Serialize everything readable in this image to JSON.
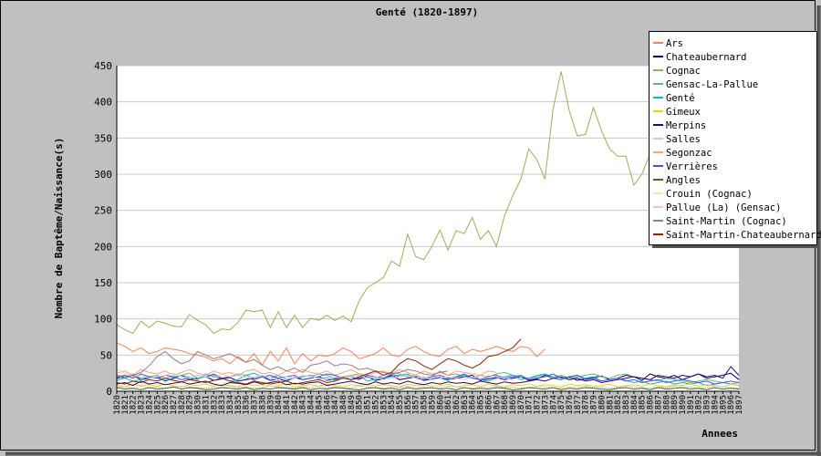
{
  "chart_data": {
    "type": "line",
    "title": "Genté (1820-1897)",
    "xlabel": "Annees",
    "ylabel": "Nombre de Baptême/Naissance(s)",
    "ylim": [
      0,
      450
    ],
    "yticks": [
      0,
      50,
      100,
      150,
      200,
      250,
      300,
      350,
      400,
      450
    ],
    "x_start": 1820,
    "x_end": 1897,
    "grid": true,
    "legend_position": "top-right",
    "series": [
      {
        "name": "Ars",
        "color": "#ff7f50",
        "values": [
          67,
          62,
          55,
          60,
          52,
          55,
          60,
          58,
          56,
          52,
          50,
          47,
          42,
          45,
          38,
          48,
          40,
          52,
          36,
          55,
          42,
          60,
          38,
          52,
          42,
          50,
          48,
          52,
          60,
          55,
          45,
          48,
          52,
          60,
          50,
          48,
          58,
          62,
          55,
          50,
          48,
          58,
          62,
          52,
          58,
          55,
          58,
          62,
          58,
          55,
          62,
          60,
          48,
          58,
          null,
          null,
          null,
          null,
          null,
          null,
          null,
          null,
          null,
          null,
          null,
          null,
          null,
          null,
          null,
          null,
          null,
          null,
          null,
          null,
          null,
          null,
          null,
          null
        ]
      },
      {
        "name": "Chateaubernard",
        "color": "#000080",
        "values": [
          18,
          20,
          22,
          16,
          18,
          20,
          14,
          18,
          22,
          16,
          18,
          20,
          15,
          17,
          19,
          14,
          16,
          18,
          20,
          15,
          17,
          14,
          19,
          16,
          18,
          20,
          15,
          17,
          19,
          16,
          18,
          20,
          15,
          17,
          22,
          16,
          18,
          20,
          15,
          17,
          19,
          16,
          18,
          20,
          22,
          15,
          17,
          19,
          16,
          18,
          20,
          15,
          17,
          22,
          18,
          16,
          20,
          15,
          17,
          19,
          21,
          16,
          18,
          22,
          20,
          15,
          24,
          20,
          18,
          22,
          16,
          20,
          24,
          18,
          20,
          22,
          25,
          16
        ]
      },
      {
        "name": "Cognac",
        "color": "#a8a852",
        "values": [
          92,
          85,
          80,
          97,
          88,
          97,
          94,
          90,
          89,
          106,
          98,
          92,
          80,
          86,
          85,
          95,
          112,
          110,
          112,
          88,
          110,
          88,
          105,
          88,
          101,
          98,
          105,
          98,
          104,
          96,
          125,
          143,
          150,
          157,
          180,
          173,
          217,
          186,
          182,
          200,
          223,
          195,
          222,
          218,
          240,
          210,
          222,
          200,
          243,
          270,
          293,
          335,
          320,
          293,
          390,
          442,
          388,
          353,
          355,
          392,
          360,
          335,
          325,
          325,
          285,
          300,
          328,
          333,
          328,
          322,
          null,
          null,
          null,
          null,
          null,
          null,
          null,
          null
        ]
      },
      {
        "name": "Gensac-La-Pallue",
        "color": "#66bb66",
        "values": [
          22,
          20,
          24,
          18,
          20,
          22,
          18,
          20,
          22,
          25,
          18,
          20,
          22,
          18,
          20,
          24,
          22,
          18,
          20,
          22,
          16,
          20,
          18,
          22,
          20,
          24,
          22,
          18,
          20,
          22,
          24,
          20,
          18,
          22,
          26,
          24,
          20,
          22,
          18,
          20,
          28,
          22,
          24,
          20,
          18,
          22,
          20,
          24,
          26,
          22,
          20,
          18,
          22,
          24,
          20,
          22,
          18,
          20,
          22,
          24,
          20,
          18,
          22,
          24,
          20,
          18,
          16,
          14,
          18,
          16,
          14,
          12,
          14,
          16,
          14,
          12,
          10,
          12
        ]
      },
      {
        "name": "Genté",
        "color": "#00bcd4",
        "values": [
          15,
          18,
          14,
          16,
          20,
          18,
          15,
          17,
          22,
          19,
          16,
          24,
          20,
          18,
          14,
          16,
          22,
          25,
          20,
          18,
          22,
          16,
          18,
          20,
          22,
          17,
          19,
          15,
          18,
          20,
          22,
          14,
          16,
          18,
          20,
          22,
          24,
          18,
          20,
          16,
          18,
          15,
          20,
          22,
          18,
          16,
          14,
          18,
          20,
          22,
          16,
          18,
          20,
          24,
          18,
          16,
          20,
          22,
          18,
          20,
          14,
          16,
          18,
          15,
          12,
          14,
          10,
          12,
          14,
          10,
          12,
          10,
          12,
          8,
          10,
          12,
          10,
          8
        ]
      },
      {
        "name": "Gimeux",
        "color": "#ffd000",
        "values": [
          8,
          6,
          10,
          8,
          9,
          7,
          10,
          8,
          6,
          9,
          8,
          10,
          7,
          9,
          8,
          6,
          10,
          8,
          9,
          7,
          8,
          10,
          6,
          8,
          9,
          7,
          10,
          8,
          6,
          9,
          8,
          10,
          7,
          9,
          8,
          6,
          10,
          8,
          9,
          7,
          8,
          10,
          6,
          8,
          9,
          7,
          10,
          8,
          6,
          9,
          8,
          10,
          7,
          9,
          8,
          6,
          10,
          8,
          9,
          7,
          8,
          10,
          6,
          8,
          9,
          7,
          10,
          8,
          6,
          9,
          8,
          10,
          7,
          9,
          8,
          6,
          10,
          8
        ]
      },
      {
        "name": "Merpins",
        "color": "#330066",
        "values": [
          10,
          12,
          8,
          14,
          10,
          12,
          9,
          11,
          13,
          10,
          12,
          14,
          10,
          8,
          12,
          11,
          9,
          13,
          10,
          12,
          14,
          9,
          11,
          10,
          12,
          13,
          8,
          10,
          12,
          14,
          11,
          9,
          13,
          10,
          12,
          10,
          14,
          11,
          9,
          12,
          10,
          13,
          11,
          12,
          10,
          14,
          12,
          10,
          13,
          11,
          12,
          14,
          16,
          14,
          18,
          20,
          16,
          18,
          14,
          16,
          12,
          14,
          16,
          18,
          20,
          18,
          16,
          22,
          20,
          18,
          22,
          20,
          24,
          20,
          22,
          18,
          34,
          22
        ]
      },
      {
        "name": "Salles",
        "color": "#cccccc",
        "values": [
          5,
          6,
          4,
          7,
          5,
          6,
          4,
          5,
          7,
          6,
          5,
          4,
          6,
          5,
          7,
          5,
          6,
          4,
          5,
          7,
          6,
          5,
          4,
          6,
          5,
          7,
          5,
          6,
          4,
          5,
          7,
          6,
          5,
          4,
          6,
          5,
          7,
          5,
          6,
          4,
          5,
          7,
          6,
          5,
          4,
          6,
          5,
          7,
          5,
          6,
          4,
          5,
          7,
          6,
          5,
          4,
          6,
          5,
          7,
          5,
          6,
          4,
          5,
          7,
          6,
          5,
          4,
          6,
          5,
          7,
          5,
          6,
          4,
          5,
          7,
          6,
          5,
          4
        ]
      },
      {
        "name": "Segonzac",
        "color": "#ffa07a",
        "values": [
          25,
          28,
          22,
          30,
          26,
          24,
          28,
          22,
          26,
          30,
          25,
          22,
          28,
          24,
          26,
          22,
          28,
          30,
          24,
          26,
          22,
          28,
          25,
          30,
          26,
          24,
          28,
          22,
          26,
          30,
          24,
          22,
          26,
          28,
          24,
          30,
          26,
          22,
          28,
          24,
          26,
          22,
          28,
          26,
          24,
          22,
          28,
          26,
          null,
          null,
          null,
          null,
          null,
          null,
          null,
          null,
          null,
          null,
          null,
          null,
          null,
          null,
          null,
          null,
          null,
          null,
          null,
          null,
          null,
          null,
          null,
          null,
          null,
          null,
          null,
          null,
          null,
          null
        ]
      },
      {
        "name": "Verrières",
        "color": "#4d4dff",
        "values": [
          20,
          22,
          18,
          24,
          20,
          18,
          22,
          20,
          16,
          18,
          22,
          20,
          24,
          18,
          20,
          22,
          18,
          16,
          20,
          22,
          18,
          20,
          22,
          16,
          18,
          20,
          24,
          22,
          18,
          20,
          16,
          22,
          20,
          18,
          24,
          20,
          22,
          18,
          16,
          20,
          22,
          18,
          20,
          24,
          18,
          16,
          20,
          22,
          18,
          20,
          22,
          16,
          18,
          20,
          24,
          18,
          20,
          22,
          16,
          18,
          14,
          16,
          18,
          14,
          16,
          12,
          14,
          16,
          12,
          14,
          16,
          14,
          12,
          14,
          10,
          12,
          14,
          12
        ]
      },
      {
        "name": "Angles",
        "color": "#4a6b1e",
        "values": [
          5,
          3,
          4,
          2,
          5,
          3,
          4,
          6,
          3,
          5,
          4,
          2,
          3,
          5,
          4,
          3,
          5,
          2,
          4,
          3,
          5,
          4,
          3,
          5,
          2,
          4,
          3,
          5,
          4,
          3,
          2,
          4,
          5,
          3,
          4,
          2,
          5,
          3,
          4,
          5,
          3,
          4,
          2,
          5,
          3,
          4,
          3,
          5,
          4,
          2,
          3,
          5,
          4,
          3,
          5,
          2,
          4,
          3,
          5,
          4,
          3,
          2,
          4,
          5,
          3,
          4,
          2,
          5,
          3,
          4,
          5,
          3,
          4,
          2,
          5,
          3,
          4,
          3
        ]
      },
      {
        "name": "Crouin (Cognac)",
        "color": "#e6f5a0",
        "values": [
          null,
          null,
          null,
          null,
          null,
          null,
          null,
          null,
          null,
          null,
          null,
          null,
          null,
          null,
          null,
          null,
          null,
          null,
          null,
          null,
          null,
          null,
          null,
          null,
          null,
          null,
          null,
          null,
          null,
          null,
          null,
          null,
          null,
          null,
          null,
          null,
          null,
          null,
          null,
          null,
          null,
          null,
          null,
          null,
          null,
          null,
          null,
          null,
          null,
          null,
          null,
          null,
          null,
          null,
          null,
          null,
          null,
          null,
          null,
          null,
          null,
          null,
          null,
          null,
          null,
          null,
          null,
          null,
          null,
          null,
          null,
          null,
          null,
          null,
          null,
          null,
          null,
          null
        ]
      },
      {
        "name": "Pallue (La) (Gensac)",
        "color": "#ffc0cb",
        "values": [
          30,
          25,
          20,
          22,
          18,
          20,
          22,
          25,
          20,
          18,
          22,
          20,
          18,
          24,
          20,
          22,
          18,
          20,
          22,
          18,
          16,
          20,
          18,
          22,
          20,
          18,
          16,
          20,
          18,
          20,
          22,
          18,
          20,
          16,
          18,
          20,
          22,
          18,
          20,
          16,
          18,
          20,
          18,
          16,
          20,
          18,
          22,
          20,
          18,
          16,
          null,
          null,
          null,
          null,
          null,
          null,
          null,
          null,
          null,
          null,
          null,
          null,
          null,
          null,
          null,
          null,
          null,
          null,
          null,
          null,
          null,
          null,
          null,
          null,
          null,
          null,
          null,
          null
        ]
      },
      {
        "name": "Saint-Martin (Cognac)",
        "color": "#9e7a85",
        "values": [
          20,
          18,
          22,
          26,
          35,
          48,
          55,
          45,
          38,
          42,
          55,
          50,
          45,
          48,
          52,
          46,
          40,
          44,
          36,
          30,
          34,
          28,
          32,
          26,
          36,
          38,
          42,
          35,
          38,
          36,
          30,
          32,
          28,
          26,
          24,
          26,
          30,
          28,
          24,
          22,
          26,
          28,
          null,
          null,
          null,
          null,
          null,
          null,
          null,
          null,
          null,
          null,
          null,
          null,
          null,
          null,
          null,
          null,
          null,
          null,
          null,
          null,
          null,
          null,
          null,
          null,
          null,
          null,
          null,
          null,
          null,
          null,
          null,
          null,
          null,
          null,
          null,
          null
        ]
      },
      {
        "name": "Saint-Martin-Chateaubernard",
        "color": "#8b2500",
        "values": [
          12,
          10,
          14,
          12,
          16,
          14,
          18,
          15,
          13,
          16,
          14,
          12,
          15,
          18,
          14,
          12,
          10,
          14,
          12,
          10,
          12,
          14,
          10,
          12,
          14,
          16,
          12,
          14,
          18,
          16,
          20,
          24,
          28,
          22,
          26,
          38,
          45,
          42,
          35,
          30,
          38,
          45,
          42,
          36,
          32,
          38,
          48,
          50,
          55,
          60,
          72,
          null,
          null,
          null,
          null,
          null,
          null,
          null,
          null,
          null,
          null,
          null,
          null,
          null,
          null,
          null,
          null,
          null,
          null,
          null,
          null,
          null,
          null,
          null,
          null,
          null,
          null,
          null
        ]
      }
    ]
  }
}
